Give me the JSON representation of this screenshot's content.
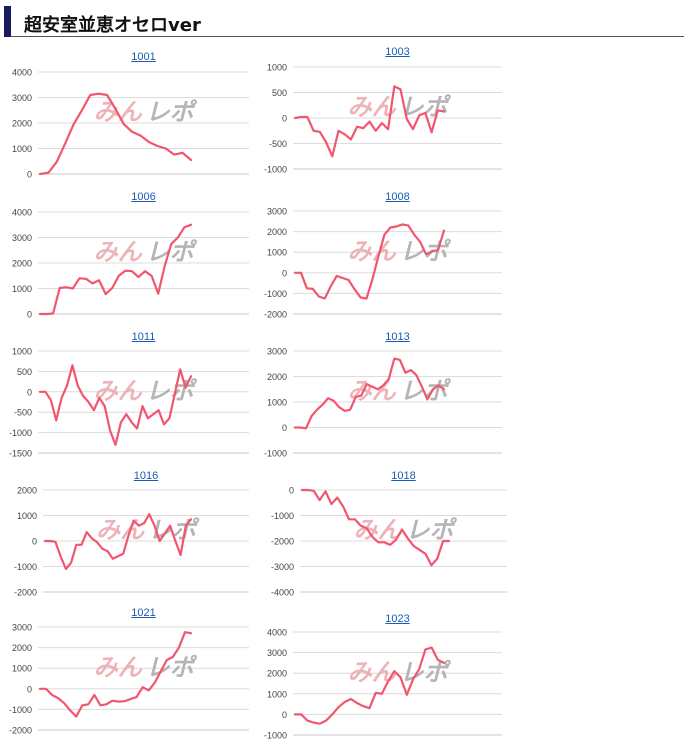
{
  "page": {
    "title": "超安室並恵オセロver"
  },
  "watermark": {
    "left": "みん",
    "right": "レポ",
    "left_color": "#e89aa0",
    "right_color": "#a8a8a8"
  },
  "colors": {
    "line": "#f2566e",
    "grid": "#dcdcdc",
    "axis": "#c8c8c8",
    "tick_text": "#444444",
    "link": "#1a5cb3"
  },
  "chart_data": [
    {
      "type": "line",
      "title": "1001",
      "ylim": [
        0,
        4000
      ],
      "yticks": [
        0,
        1000,
        2000,
        3000,
        4000
      ],
      "y": [
        0,
        50,
        480,
        1200,
        1950,
        2500,
        3100,
        3150,
        3100,
        2550,
        1950,
        1650,
        1500,
        1250,
        1100,
        1000,
        760,
        830,
        550
      ]
    },
    {
      "type": "line",
      "title": "1003",
      "ylim": [
        -1000,
        1000
      ],
      "yticks": [
        -1000,
        -500,
        0,
        500,
        1000
      ],
      "y": [
        0,
        20,
        20,
        -250,
        -270,
        -470,
        -750,
        -250,
        -320,
        -420,
        -170,
        -200,
        -70,
        -250,
        -100,
        -220,
        620,
        560,
        -20,
        -220,
        50,
        100,
        -280,
        150,
        130
      ]
    },
    {
      "type": "line",
      "title": "1006",
      "ylim": [
        0,
        4000
      ],
      "yticks": [
        0,
        1000,
        2000,
        3000,
        4000
      ],
      "y": [
        0,
        0,
        20,
        1020,
        1050,
        1000,
        1400,
        1380,
        1200,
        1320,
        780,
        1020,
        1500,
        1700,
        1680,
        1450,
        1680,
        1500,
        800,
        1880,
        2750,
        3000,
        3400,
        3500
      ]
    },
    {
      "type": "line",
      "title": "1008",
      "ylim": [
        -2000,
        3000
      ],
      "yticks": [
        -2000,
        -1000,
        0,
        1000,
        2000,
        3000
      ],
      "y": [
        0,
        0,
        -750,
        -780,
        -1150,
        -1250,
        -650,
        -150,
        -250,
        -350,
        -800,
        -1200,
        -1250,
        -300,
        800,
        1850,
        2200,
        2250,
        2350,
        2300,
        1850,
        1500,
        900,
        1050,
        1100,
        2050
      ]
    },
    {
      "type": "line",
      "title": "1011",
      "ylim": [
        -1500,
        1000
      ],
      "yticks": [
        -1500,
        -1000,
        -500,
        0,
        500,
        1000
      ],
      "y": [
        0,
        0,
        -200,
        -700,
        -150,
        150,
        650,
        150,
        -100,
        -250,
        -450,
        -150,
        -350,
        -950,
        -1300,
        -750,
        -550,
        -750,
        -900,
        -350,
        -650,
        -550,
        -450,
        -800,
        -650,
        -50,
        550,
        100,
        380
      ]
    },
    {
      "type": "line",
      "title": "1013",
      "ylim": [
        -1000,
        3000
      ],
      "yticks": [
        -1000,
        0,
        1000,
        2000,
        3000
      ],
      "y": [
        0,
        0,
        -30,
        450,
        700,
        900,
        1150,
        1050,
        800,
        650,
        700,
        1200,
        1250,
        1700,
        1600,
        1500,
        1650,
        1900,
        2700,
        2650,
        2150,
        2250,
        2050,
        1600,
        1100,
        1500,
        1650,
        1500
      ]
    },
    {
      "type": "line",
      "title": "1016",
      "ylim": [
        -2000,
        2000
      ],
      "yticks": [
        -2000,
        -1000,
        0,
        1000,
        2000
      ],
      "y": [
        0,
        0,
        -30,
        -600,
        -1100,
        -850,
        -150,
        -150,
        350,
        100,
        -50,
        -300,
        -400,
        -700,
        -600,
        -500,
        200,
        800,
        600,
        700,
        1050,
        600,
        0,
        300,
        600,
        0,
        -550,
        600,
        850
      ]
    },
    {
      "type": "line",
      "title": "1018",
      "ylim": [
        -4000,
        0
      ],
      "yticks": [
        -4000,
        -3000,
        -2000,
        -1000,
        0
      ],
      "y": [
        0,
        0,
        -30,
        -400,
        -50,
        -550,
        -300,
        -650,
        -1150,
        -1150,
        -1400,
        -1500,
        -1850,
        -2050,
        -2050,
        -2150,
        -1950,
        -1550,
        -1900,
        -2200,
        -2350,
        -2500,
        -2950,
        -2700,
        -2000,
        -2000
      ]
    },
    {
      "type": "line",
      "title": "1021",
      "ylim": [
        -2000,
        3000
      ],
      "yticks": [
        -2000,
        -1000,
        0,
        1000,
        2000,
        3000
      ],
      "y": [
        0,
        0,
        -300,
        -450,
        -700,
        -1050,
        -1350,
        -800,
        -750,
        -300,
        -800,
        -750,
        -580,
        -620,
        -600,
        -500,
        -400,
        80,
        -80,
        300,
        850,
        1400,
        1550,
        2000,
        2750,
        2700
      ]
    },
    {
      "type": "line",
      "title": "1023",
      "ylim": [
        -1000,
        4000
      ],
      "yticks": [
        -1000,
        0,
        1000,
        2000,
        3000,
        4000
      ],
      "y": [
        0,
        0,
        -300,
        -400,
        -450,
        -300,
        0,
        350,
        600,
        750,
        550,
        400,
        300,
        1050,
        1000,
        1600,
        2100,
        1800,
        950,
        1700,
        2200,
        3150,
        3250,
        2650,
        2500
      ]
    }
  ]
}
